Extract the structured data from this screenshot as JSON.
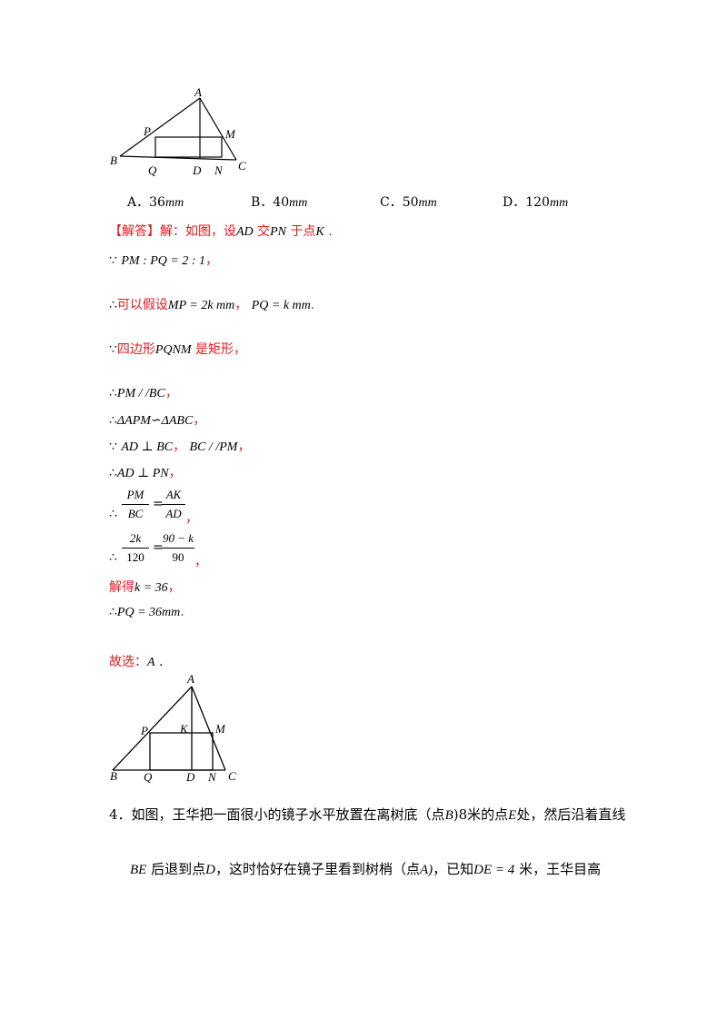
{
  "figure1": {
    "labels": {
      "A": "A",
      "B": "B",
      "C": "C",
      "P": "P",
      "M": "M",
      "Q": "Q",
      "D": "D",
      "N": "N"
    }
  },
  "options": [
    {
      "letter": "A．",
      "value": "36",
      "unit": "mm"
    },
    {
      "letter": "B．",
      "value": "40",
      "unit": "mm"
    },
    {
      "letter": "C．",
      "value": "50",
      "unit": "mm"
    },
    {
      "letter": "D．",
      "value": "120",
      "unit": "mm"
    }
  ],
  "solution": {
    "header": "【解答】",
    "intro_cn1": "解：如图，设",
    "intro_math1": "AD",
    "intro_cn2": "交",
    "intro_math2": "PN",
    "intro_cn3": "于点",
    "intro_math3": "K",
    "intro_end": ".",
    "line1_sym": "∵",
    "line1_math": "PM : PQ = 2 : 1",
    "line1_end": "，",
    "line2_sym": "∴",
    "line2_cn": "可以假设",
    "line2_math1": "MP = 2k  mm",
    "line2_sep": "，",
    "line2_math2": "PQ = k  mm",
    "line2_end": ".",
    "line3_sym": "∵",
    "line3_cn1": "四边形",
    "line3_math": "PQNM",
    "line3_cn2": "是矩形，",
    "line4_sym": "∴",
    "line4_math": "PM / /BC",
    "line4_end": "，",
    "line5_sym": "∴",
    "line5_math": "ΔAPM∽ΔABC",
    "line5_end": "，",
    "line6_sym": "∵",
    "line6_math1": "AD ⊥ BC",
    "line6_sep": "，",
    "line6_math2": "BC / /PM",
    "line6_end": "，",
    "line7_sym": "∴",
    "line7_math": "AD ⊥ PN",
    "line7_end": "，",
    "frac1": {
      "sym": "∴",
      "n1": "PM",
      "d1": "BC",
      "eq": "=",
      "n2": "AK",
      "d2": "AD",
      "end": "，"
    },
    "frac2": {
      "sym": "∴",
      "n1": "2k",
      "d1": "120",
      "eq": "=",
      "n2": "90 − k",
      "d2": "90",
      "end": "，"
    },
    "line8_cn": "解得",
    "line8_math": "k = 36",
    "line8_end": "，",
    "line9_sym": "∴",
    "line9_math": "PQ = 36mm",
    "line9_end": ".",
    "answer_cn": "故选：",
    "answer_math": "A",
    "answer_end": "."
  },
  "figure2": {
    "labels": {
      "A": "A",
      "B": "B",
      "C": "C",
      "P": "P",
      "M": "M",
      "K": "K",
      "Q": "Q",
      "D": "D",
      "N": "N"
    }
  },
  "question4": {
    "number": "4．",
    "line1_a": "如图，王华把一面很小的镜子水平放置在离树底（点",
    "line1_B": "B",
    "line1_b": ")8",
    "line1_c": "米的点",
    "line1_E": "E",
    "line1_d": "处，然后沿着直线",
    "line2_BE": "BE",
    "line2_a": "后退到点",
    "line2_D": "D",
    "line2_b": "，这时恰好在镜子里看到树梢（点",
    "line2_A": "A)",
    "line2_c": "，已知",
    "line2_eq": "DE = 4",
    "line2_d": "米，王华目高"
  }
}
